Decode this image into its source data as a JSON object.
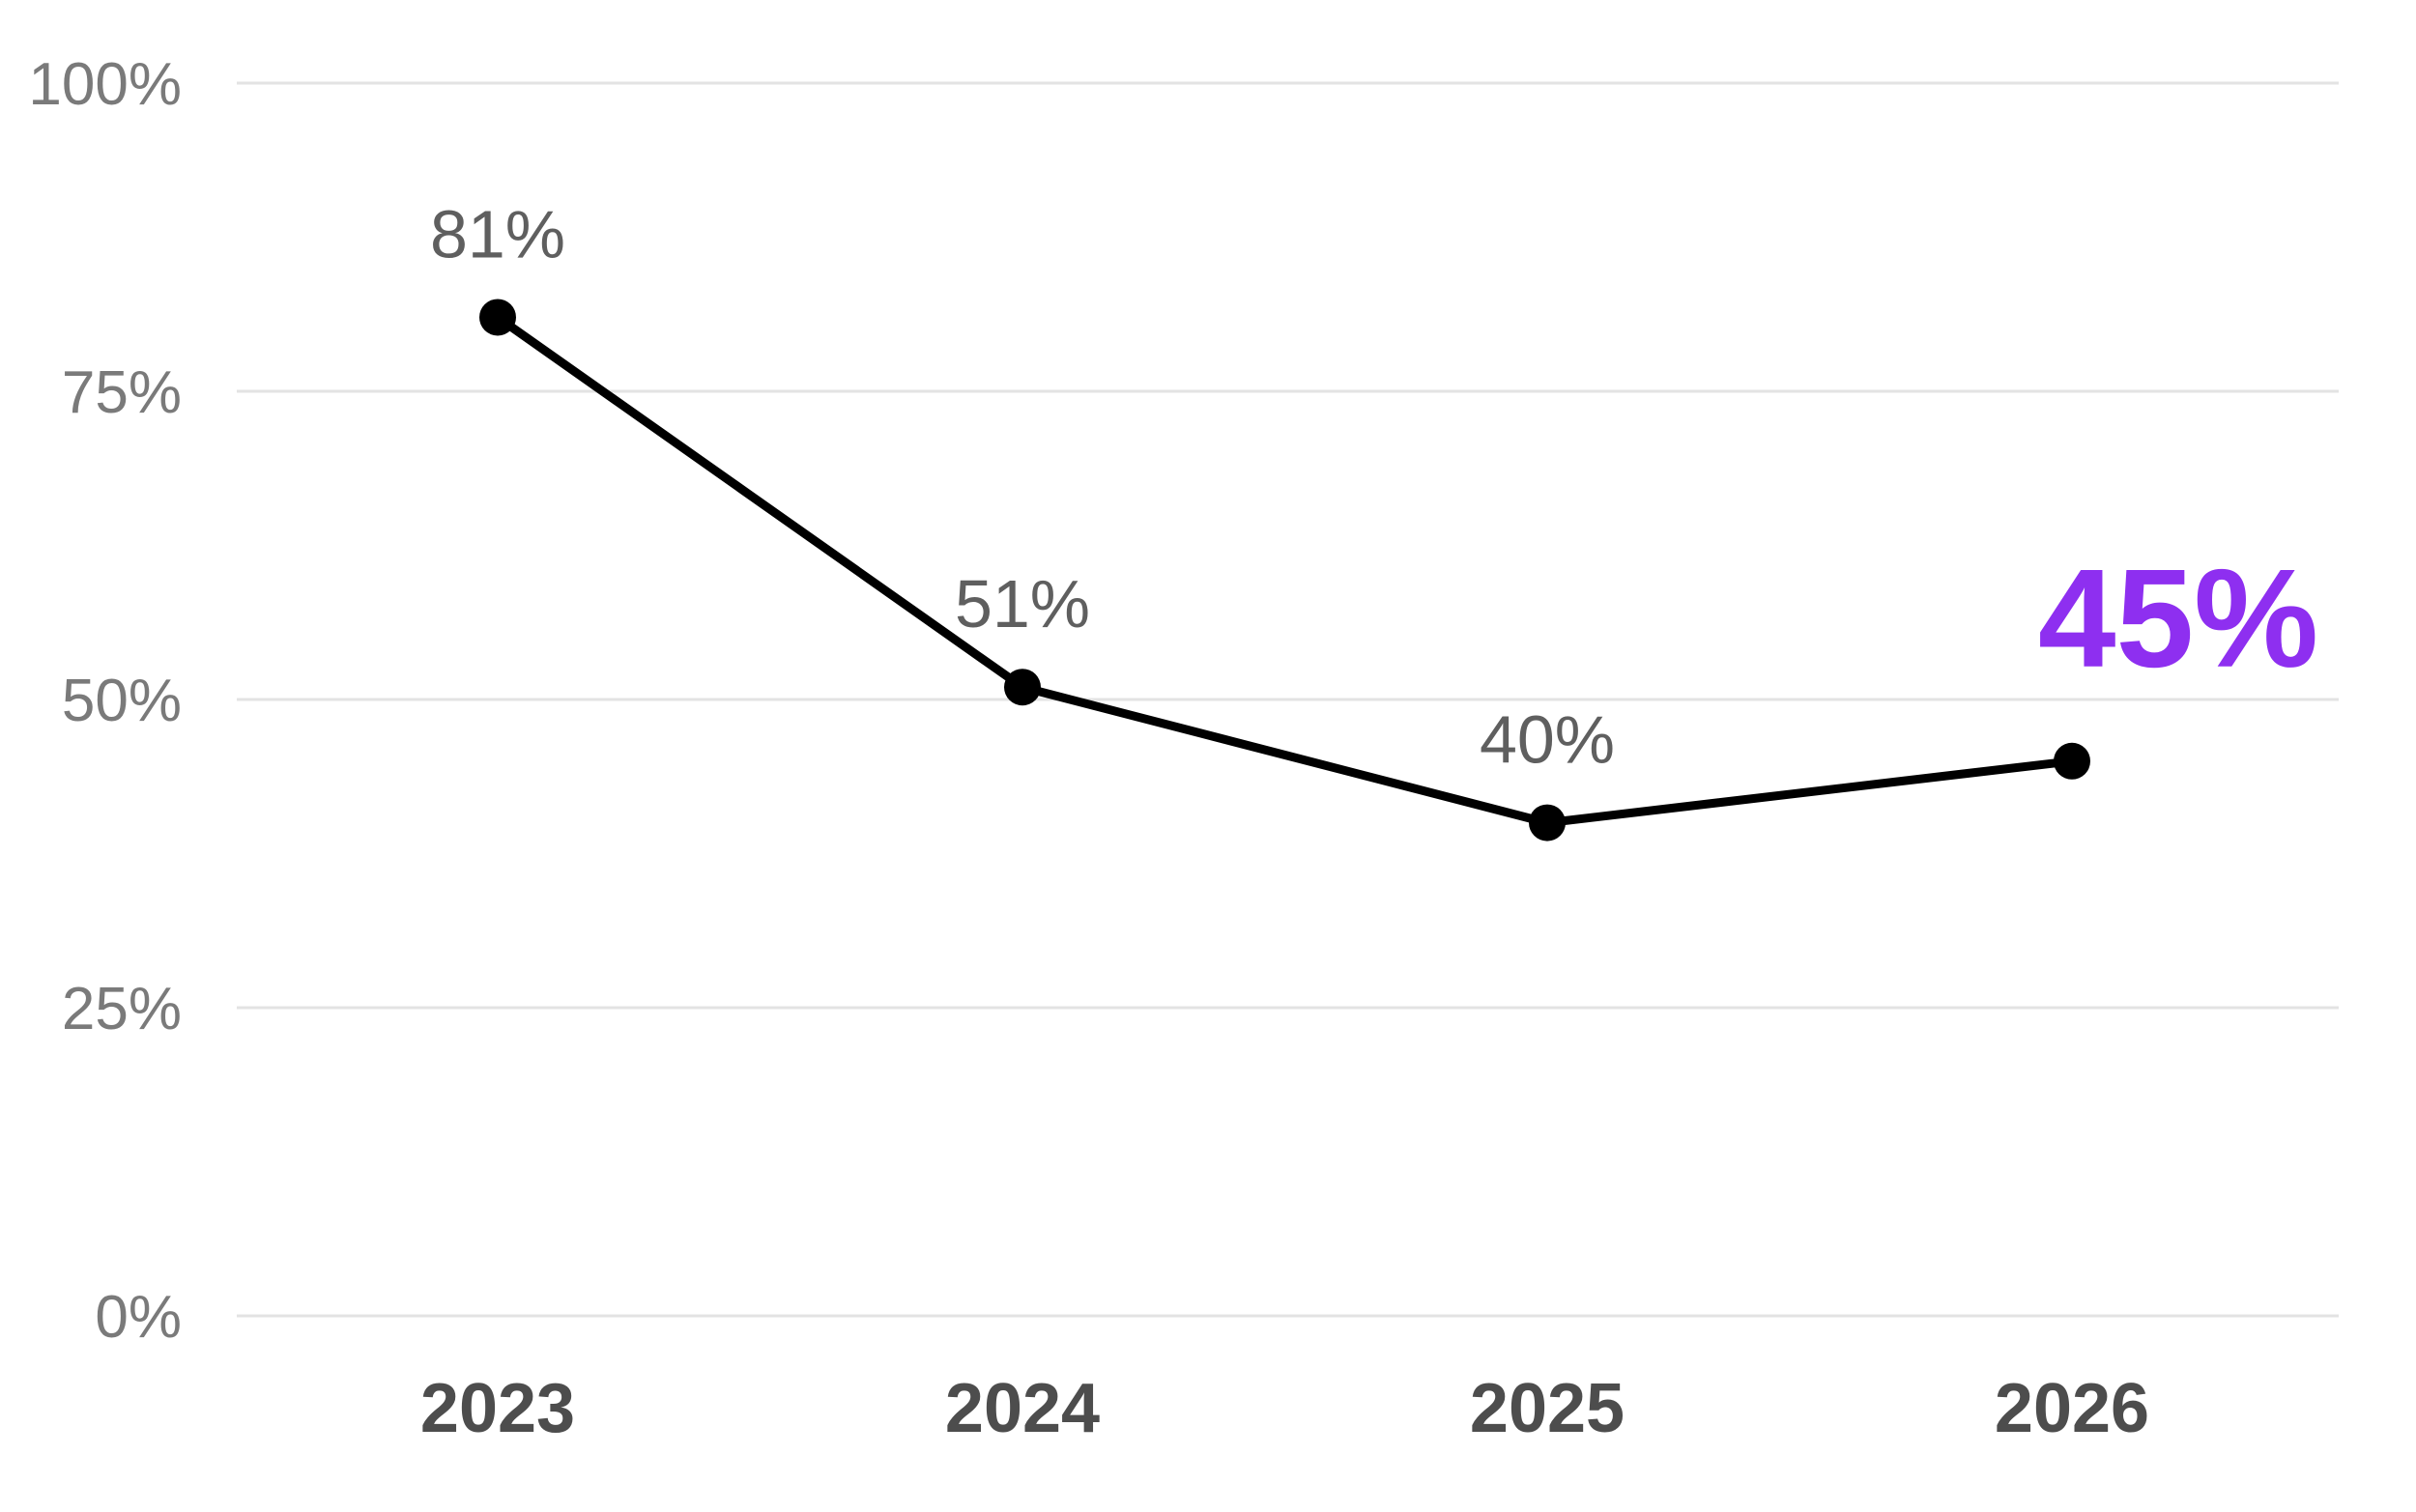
{
  "chart_data": {
    "type": "line",
    "title": "",
    "xlabel": "",
    "ylabel": "",
    "categories": [
      "2023",
      "2024",
      "2025",
      "2026"
    ],
    "y_ticks": [
      "0%",
      "25%",
      "50%",
      "75%",
      "100%"
    ],
    "ylim": [
      0,
      100
    ],
    "grid": true,
    "legend": "none",
    "series": [
      {
        "values": [
          81,
          51,
          40,
          45
        ],
        "data_labels": [
          "81%",
          "51%",
          "40%",
          "45%"
        ],
        "color": "#000000"
      }
    ],
    "highlight": {
      "index": 3,
      "color": "#8e2ff0"
    }
  }
}
